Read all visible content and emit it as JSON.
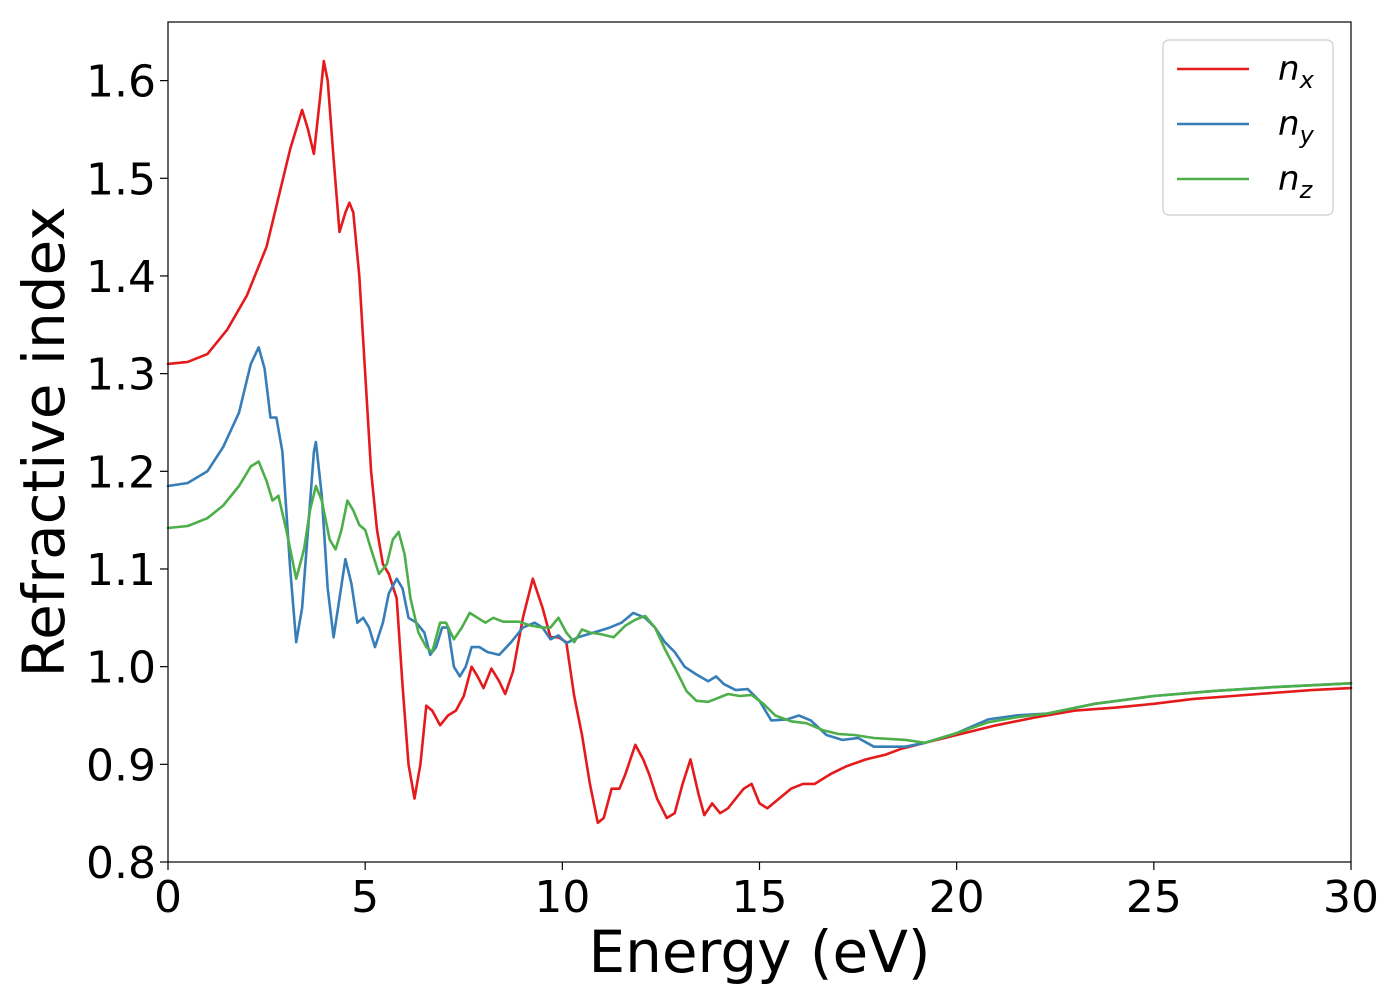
{
  "chart_data": {
    "type": "line",
    "xlabel": "Energy (eV)",
    "ylabel": "Refractive index",
    "xlim": [
      0,
      30
    ],
    "ylim": [
      0.8,
      1.66
    ],
    "xticks": [
      "0",
      "5",
      "10",
      "15",
      "20",
      "25",
      "30"
    ],
    "yticks": [
      "0.8",
      "0.9",
      "1.0",
      "1.1",
      "1.2",
      "1.3",
      "1.4",
      "1.5",
      "1.6"
    ],
    "grid": false,
    "legend_position": "top-right",
    "series": [
      {
        "name": "n",
        "subscript": "x",
        "color": "#e41a1c",
        "points": [
          [
            0,
            1.31
          ],
          [
            0.5,
            1.312
          ],
          [
            1.0,
            1.32
          ],
          [
            1.5,
            1.345
          ],
          [
            2.0,
            1.38
          ],
          [
            2.5,
            1.43
          ],
          [
            2.8,
            1.48
          ],
          [
            3.1,
            1.53
          ],
          [
            3.4,
            1.57
          ],
          [
            3.55,
            1.55
          ],
          [
            3.7,
            1.525
          ],
          [
            3.85,
            1.58
          ],
          [
            3.95,
            1.62
          ],
          [
            4.05,
            1.6
          ],
          [
            4.2,
            1.52
          ],
          [
            4.35,
            1.445
          ],
          [
            4.5,
            1.465
          ],
          [
            4.6,
            1.475
          ],
          [
            4.7,
            1.465
          ],
          [
            4.85,
            1.4
          ],
          [
            5.0,
            1.3
          ],
          [
            5.15,
            1.2
          ],
          [
            5.3,
            1.14
          ],
          [
            5.45,
            1.105
          ],
          [
            5.6,
            1.095
          ],
          [
            5.8,
            1.07
          ],
          [
            5.95,
            0.98
          ],
          [
            6.1,
            0.9
          ],
          [
            6.25,
            0.865
          ],
          [
            6.4,
            0.9
          ],
          [
            6.55,
            0.96
          ],
          [
            6.7,
            0.955
          ],
          [
            6.9,
            0.94
          ],
          [
            7.1,
            0.95
          ],
          [
            7.3,
            0.955
          ],
          [
            7.5,
            0.97
          ],
          [
            7.7,
            1.0
          ],
          [
            7.85,
            0.99
          ],
          [
            8.0,
            0.978
          ],
          [
            8.2,
            0.998
          ],
          [
            8.4,
            0.985
          ],
          [
            8.55,
            0.972
          ],
          [
            8.75,
            0.995
          ],
          [
            9.0,
            1.05
          ],
          [
            9.25,
            1.09
          ],
          [
            9.5,
            1.06
          ],
          [
            9.7,
            1.03
          ],
          [
            9.9,
            1.03
          ],
          [
            10.1,
            1.025
          ],
          [
            10.3,
            0.97
          ],
          [
            10.5,
            0.93
          ],
          [
            10.7,
            0.88
          ],
          [
            10.9,
            0.84
          ],
          [
            11.05,
            0.845
          ],
          [
            11.25,
            0.875
          ],
          [
            11.45,
            0.875
          ],
          [
            11.6,
            0.89
          ],
          [
            11.85,
            0.92
          ],
          [
            12.05,
            0.905
          ],
          [
            12.2,
            0.89
          ],
          [
            12.4,
            0.865
          ],
          [
            12.65,
            0.845
          ],
          [
            12.85,
            0.85
          ],
          [
            13.05,
            0.88
          ],
          [
            13.25,
            0.905
          ],
          [
            13.45,
            0.87
          ],
          [
            13.6,
            0.848
          ],
          [
            13.8,
            0.86
          ],
          [
            14.0,
            0.85
          ],
          [
            14.2,
            0.855
          ],
          [
            14.4,
            0.865
          ],
          [
            14.6,
            0.875
          ],
          [
            14.8,
            0.88
          ],
          [
            15.0,
            0.86
          ],
          [
            15.2,
            0.855
          ],
          [
            15.5,
            0.865
          ],
          [
            15.8,
            0.875
          ],
          [
            16.1,
            0.88
          ],
          [
            16.4,
            0.88
          ],
          [
            16.8,
            0.89
          ],
          [
            17.2,
            0.898
          ],
          [
            17.7,
            0.905
          ],
          [
            18.2,
            0.91
          ],
          [
            18.6,
            0.916
          ],
          [
            19.2,
            0.922
          ],
          [
            20.0,
            0.93
          ],
          [
            21.0,
            0.94
          ],
          [
            22.0,
            0.948
          ],
          [
            23.0,
            0.955
          ],
          [
            24.0,
            0.958
          ],
          [
            25.0,
            0.962
          ],
          [
            26.0,
            0.967
          ],
          [
            27.0,
            0.97
          ],
          [
            28.0,
            0.973
          ],
          [
            29.0,
            0.976
          ],
          [
            30.0,
            0.978
          ]
        ]
      },
      {
        "name": "n",
        "subscript": "y",
        "color": "#377eb8",
        "points": [
          [
            0,
            1.185
          ],
          [
            0.5,
            1.188
          ],
          [
            1.0,
            1.2
          ],
          [
            1.4,
            1.225
          ],
          [
            1.8,
            1.26
          ],
          [
            2.1,
            1.31
          ],
          [
            2.3,
            1.327
          ],
          [
            2.45,
            1.305
          ],
          [
            2.6,
            1.255
          ],
          [
            2.75,
            1.255
          ],
          [
            2.9,
            1.22
          ],
          [
            3.1,
            1.1
          ],
          [
            3.25,
            1.025
          ],
          [
            3.4,
            1.06
          ],
          [
            3.55,
            1.14
          ],
          [
            3.7,
            1.22
          ],
          [
            3.75,
            1.23
          ],
          [
            3.9,
            1.175
          ],
          [
            4.05,
            1.08
          ],
          [
            4.2,
            1.03
          ],
          [
            4.35,
            1.07
          ],
          [
            4.5,
            1.11
          ],
          [
            4.65,
            1.085
          ],
          [
            4.8,
            1.045
          ],
          [
            4.95,
            1.05
          ],
          [
            5.1,
            1.04
          ],
          [
            5.25,
            1.02
          ],
          [
            5.45,
            1.045
          ],
          [
            5.6,
            1.075
          ],
          [
            5.8,
            1.09
          ],
          [
            5.95,
            1.08
          ],
          [
            6.1,
            1.05
          ],
          [
            6.3,
            1.045
          ],
          [
            6.5,
            1.035
          ],
          [
            6.65,
            1.012
          ],
          [
            6.8,
            1.02
          ],
          [
            6.95,
            1.04
          ],
          [
            7.1,
            1.04
          ],
          [
            7.25,
            1.0
          ],
          [
            7.4,
            0.99
          ],
          [
            7.55,
            1.0
          ],
          [
            7.7,
            1.02
          ],
          [
            7.9,
            1.02
          ],
          [
            8.1,
            1.015
          ],
          [
            8.4,
            1.012
          ],
          [
            8.7,
            1.025
          ],
          [
            9.0,
            1.04
          ],
          [
            9.3,
            1.045
          ],
          [
            9.5,
            1.04
          ],
          [
            9.7,
            1.028
          ],
          [
            9.9,
            1.032
          ],
          [
            10.1,
            1.024
          ],
          [
            10.4,
            1.03
          ],
          [
            10.8,
            1.035
          ],
          [
            11.2,
            1.04
          ],
          [
            11.5,
            1.045
          ],
          [
            11.8,
            1.055
          ],
          [
            12.1,
            1.05
          ],
          [
            12.35,
            1.04
          ],
          [
            12.6,
            1.025
          ],
          [
            12.85,
            1.015
          ],
          [
            13.1,
            1.0
          ],
          [
            13.4,
            0.992
          ],
          [
            13.7,
            0.985
          ],
          [
            13.9,
            0.99
          ],
          [
            14.1,
            0.982
          ],
          [
            14.4,
            0.976
          ],
          [
            14.7,
            0.977
          ],
          [
            15.0,
            0.965
          ],
          [
            15.3,
            0.945
          ],
          [
            15.7,
            0.946
          ],
          [
            16.0,
            0.95
          ],
          [
            16.3,
            0.945
          ],
          [
            16.7,
            0.93
          ],
          [
            17.1,
            0.925
          ],
          [
            17.5,
            0.927
          ],
          [
            17.9,
            0.918
          ],
          [
            18.3,
            0.918
          ],
          [
            18.7,
            0.918
          ],
          [
            19.2,
            0.922
          ],
          [
            20.0,
            0.932
          ],
          [
            20.8,
            0.946
          ],
          [
            21.5,
            0.95
          ],
          [
            22.3,
            0.952
          ],
          [
            23.5,
            0.962
          ],
          [
            25.0,
            0.97
          ],
          [
            26.5,
            0.975
          ],
          [
            28.0,
            0.979
          ],
          [
            30.0,
            0.983
          ]
        ]
      },
      {
        "name": "n",
        "subscript": "z",
        "color": "#4daf4a",
        "points": [
          [
            0,
            1.142
          ],
          [
            0.5,
            1.144
          ],
          [
            1.0,
            1.152
          ],
          [
            1.4,
            1.165
          ],
          [
            1.8,
            1.185
          ],
          [
            2.1,
            1.205
          ],
          [
            2.3,
            1.21
          ],
          [
            2.5,
            1.19
          ],
          [
            2.65,
            1.17
          ],
          [
            2.8,
            1.175
          ],
          [
            3.0,
            1.14
          ],
          [
            3.25,
            1.09
          ],
          [
            3.45,
            1.12
          ],
          [
            3.6,
            1.16
          ],
          [
            3.75,
            1.185
          ],
          [
            3.9,
            1.17
          ],
          [
            4.1,
            1.13
          ],
          [
            4.25,
            1.12
          ],
          [
            4.4,
            1.14
          ],
          [
            4.55,
            1.17
          ],
          [
            4.7,
            1.16
          ],
          [
            4.85,
            1.145
          ],
          [
            5.0,
            1.14
          ],
          [
            5.15,
            1.12
          ],
          [
            5.35,
            1.095
          ],
          [
            5.55,
            1.105
          ],
          [
            5.7,
            1.13
          ],
          [
            5.85,
            1.138
          ],
          [
            6.0,
            1.115
          ],
          [
            6.15,
            1.07
          ],
          [
            6.35,
            1.035
          ],
          [
            6.55,
            1.02
          ],
          [
            6.7,
            1.015
          ],
          [
            6.9,
            1.045
          ],
          [
            7.05,
            1.045
          ],
          [
            7.25,
            1.028
          ],
          [
            7.45,
            1.04
          ],
          [
            7.65,
            1.055
          ],
          [
            7.85,
            1.05
          ],
          [
            8.05,
            1.045
          ],
          [
            8.25,
            1.05
          ],
          [
            8.5,
            1.046
          ],
          [
            8.9,
            1.046
          ],
          [
            9.2,
            1.042
          ],
          [
            9.5,
            1.04
          ],
          [
            9.7,
            1.04
          ],
          [
            9.9,
            1.05
          ],
          [
            10.1,
            1.035
          ],
          [
            10.3,
            1.025
          ],
          [
            10.5,
            1.038
          ],
          [
            10.7,
            1.035
          ],
          [
            11.0,
            1.033
          ],
          [
            11.3,
            1.03
          ],
          [
            11.6,
            1.042
          ],
          [
            11.85,
            1.048
          ],
          [
            12.1,
            1.052
          ],
          [
            12.35,
            1.04
          ],
          [
            12.6,
            1.018
          ],
          [
            12.9,
            0.995
          ],
          [
            13.15,
            0.975
          ],
          [
            13.4,
            0.965
          ],
          [
            13.7,
            0.964
          ],
          [
            13.95,
            0.968
          ],
          [
            14.2,
            0.972
          ],
          [
            14.5,
            0.97
          ],
          [
            14.8,
            0.971
          ],
          [
            15.1,
            0.962
          ],
          [
            15.4,
            0.95
          ],
          [
            15.8,
            0.944
          ],
          [
            16.2,
            0.942
          ],
          [
            16.6,
            0.935
          ],
          [
            17.0,
            0.931
          ],
          [
            17.4,
            0.93
          ],
          [
            17.9,
            0.927
          ],
          [
            18.3,
            0.926
          ],
          [
            18.7,
            0.925
          ],
          [
            19.2,
            0.922
          ],
          [
            20.0,
            0.932
          ],
          [
            20.8,
            0.943
          ],
          [
            21.5,
            0.948
          ],
          [
            22.3,
            0.952
          ],
          [
            23.5,
            0.962
          ],
          [
            25.0,
            0.97
          ],
          [
            26.5,
            0.975
          ],
          [
            28.0,
            0.979
          ],
          [
            30.0,
            0.983
          ]
        ]
      }
    ]
  }
}
